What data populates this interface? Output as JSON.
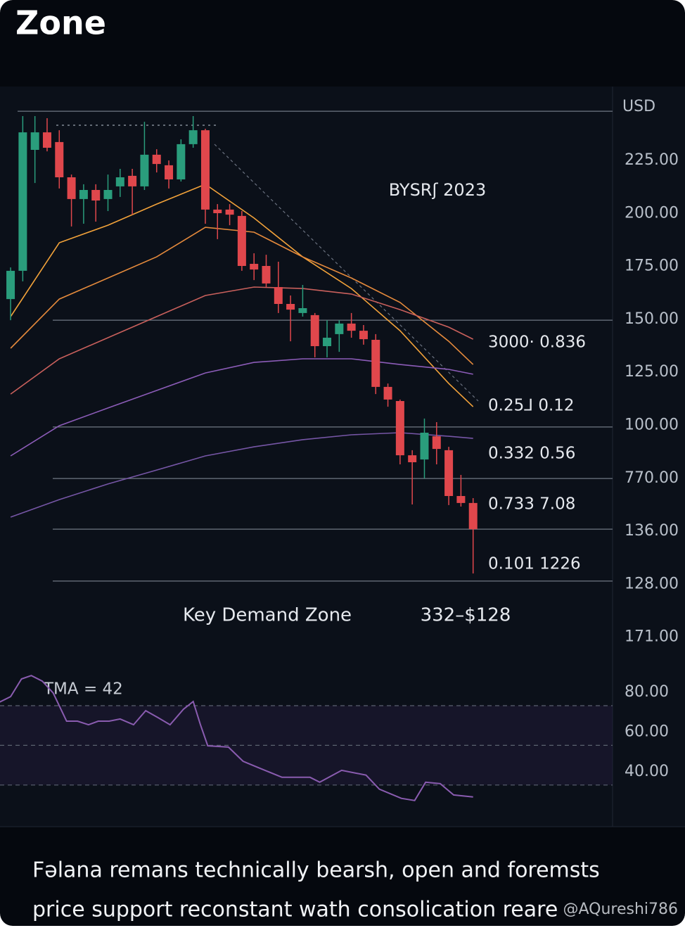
{
  "header": {
    "title": "Zone"
  },
  "chart_data": [
    {
      "type": "candlestick",
      "annotation": "BYSRʃ 2023",
      "axis_unit": "USD",
      "axis_labels": [
        "225.00",
        "200.00",
        "175.00",
        "150.00",
        "125.00",
        "100.00",
        "770.00",
        "136.00",
        "128.00",
        "171.00"
      ],
      "level_labels": [
        "3000· 0.836",
        "0.25⅃ 0.12",
        "0.332 0.56",
        "0.733 7.08",
        "0.101 1226"
      ],
      "zone_label": "Key Demand Zone",
      "zone_range": "332–$128",
      "ylim": [
        0,
        260
      ],
      "xlim": [
        -0.87,
        49.4
      ],
      "levels": [
        248.3,
        149.3,
        98.7,
        74.3,
        50.3,
        25.7
      ],
      "up_color": "#2a9d7c",
      "down_color": "#e0474c",
      "open": [
        159.3,
        172.7,
        230,
        238.3,
        233.7,
        217,
        206.7,
        211,
        206.7,
        212.7,
        217.7,
        212.7,
        227.7,
        222.7,
        216,
        232.7,
        239.3,
        201.7,
        201.7,
        198.7,
        176,
        175,
        165,
        157,
        152.7,
        151.7,
        137,
        142.7,
        147.7,
        144.3,
        140,
        117.7,
        111,
        85.3,
        83.3,
        94.3,
        87.7,
        66,
        62.7
      ],
      "high": [
        174.3,
        246,
        246,
        245,
        239.3,
        218.3,
        213.7,
        213.7,
        218.3,
        221,
        221,
        243.3,
        230.3,
        225,
        235,
        246,
        240,
        204.3,
        204.3,
        201,
        181,
        180.3,
        177,
        161,
        166,
        152.7,
        149.3,
        149.3,
        152.7,
        147,
        142.7,
        119.3,
        111.7,
        87.7,
        102.7,
        101,
        89.3,
        76,
        65
      ],
      "low": [
        149.3,
        167.7,
        214.3,
        229.3,
        211.7,
        193.7,
        195,
        196,
        201,
        207.7,
        199.3,
        211,
        219.3,
        211.7,
        215,
        231,
        195,
        187.7,
        194.3,
        172.7,
        168.3,
        165,
        152.7,
        139.3,
        151,
        131.7,
        131.7,
        134.3,
        141,
        137.7,
        114.3,
        108.3,
        81,
        62,
        74.3,
        81,
        61.7,
        61,
        29.3
      ],
      "close": [
        172.7,
        238.3,
        238.3,
        231,
        217,
        206.7,
        211,
        206,
        211,
        217,
        212.7,
        227.7,
        223.3,
        216,
        232.7,
        239.3,
        201.7,
        200,
        199.3,
        175,
        173.3,
        166.7,
        157,
        154.3,
        155,
        137,
        141,
        147.7,
        144.3,
        140.3,
        117.7,
        111.7,
        85.3,
        82,
        96,
        88.3,
        66,
        62.7,
        50.3
      ],
      "series": [
        {
          "color": "#f2a23a",
          "x": [
            0,
            4,
            8,
            12,
            16,
            20,
            24,
            28,
            32,
            36,
            38
          ],
          "values": [
            151,
            186,
            194.3,
            204.3,
            213.7,
            197.7,
            179.3,
            164.3,
            144.3,
            119.3,
            108.3
          ]
        },
        {
          "color": "#e58a3c",
          "x": [
            0,
            4,
            8,
            12,
            16,
            20,
            24,
            28,
            32,
            36,
            38
          ],
          "values": [
            136,
            159.3,
            169.3,
            179.3,
            193.3,
            191,
            179.3,
            169.3,
            157.7,
            139.3,
            128.3
          ]
        },
        {
          "color": "#c9605c",
          "x": [
            0,
            4,
            8,
            12,
            16,
            20,
            24,
            28,
            32,
            36,
            38
          ],
          "values": [
            114.3,
            131,
            141,
            151,
            161,
            165,
            164.3,
            161.7,
            154.3,
            146,
            140.3
          ]
        },
        {
          "color": "#8c5cb8",
          "x": [
            0,
            4,
            8,
            12,
            16,
            20,
            24,
            28,
            32,
            36,
            38
          ],
          "values": [
            85,
            99.3,
            107.7,
            116,
            124.3,
            129.3,
            131,
            131,
            128.3,
            126,
            123.7
          ]
        },
        {
          "color": "#7656a6",
          "x": [
            0,
            4,
            8,
            12,
            16,
            20,
            24,
            28,
            32,
            36,
            38
          ],
          "values": [
            56,
            64.3,
            71.7,
            78.3,
            85,
            89.3,
            92.7,
            95,
            96,
            94.3,
            93.3
          ]
        }
      ]
    },
    {
      "type": "line",
      "label": "TMA = 42",
      "color": "#8a5cb0",
      "ylim": [
        19,
        102
      ],
      "xlim": [
        -0.87,
        49.4
      ],
      "yticks": [
        {
          "value": 80,
          "label": "80.00"
        },
        {
          "value": 60,
          "label": "60.00"
        },
        {
          "value": 40,
          "label": "40.00"
        }
      ],
      "x": [
        -0.9,
        0,
        0.9,
        1.7,
        2.6,
        3.5,
        4.6,
        5.5,
        6.4,
        7.2,
        8.1,
        9,
        10.1,
        11.1,
        12.1,
        13.1,
        14.2,
        15,
        15.6,
        16.2,
        17.9,
        19.1,
        20.2,
        22.3,
        23.4,
        24.6,
        25.4,
        27.2,
        29.2,
        30.3,
        32.1,
        33.2,
        34.1,
        35.3,
        36.4,
        38
      ],
      "values": [
        81.8,
        84.6,
        93.5,
        95.2,
        92.4,
        86.4,
        72.2,
        72.2,
        70.4,
        72.2,
        72.2,
        73.3,
        70.4,
        77.5,
        74,
        70.4,
        78.2,
        82.1,
        70.4,
        59.8,
        59.1,
        52,
        49.2,
        43.9,
        43.9,
        43.9,
        41.4,
        47.4,
        45,
        37.9,
        33.3,
        32.2,
        41.4,
        40.7,
        35,
        34
      ]
    }
  ],
  "caption": {
    "lines": [
      "Fəlana remans technically bearsh, open and foremsts",
      "price support reconstant wath consolication reare"
    ],
    "watermark": "@AQureshi786"
  }
}
